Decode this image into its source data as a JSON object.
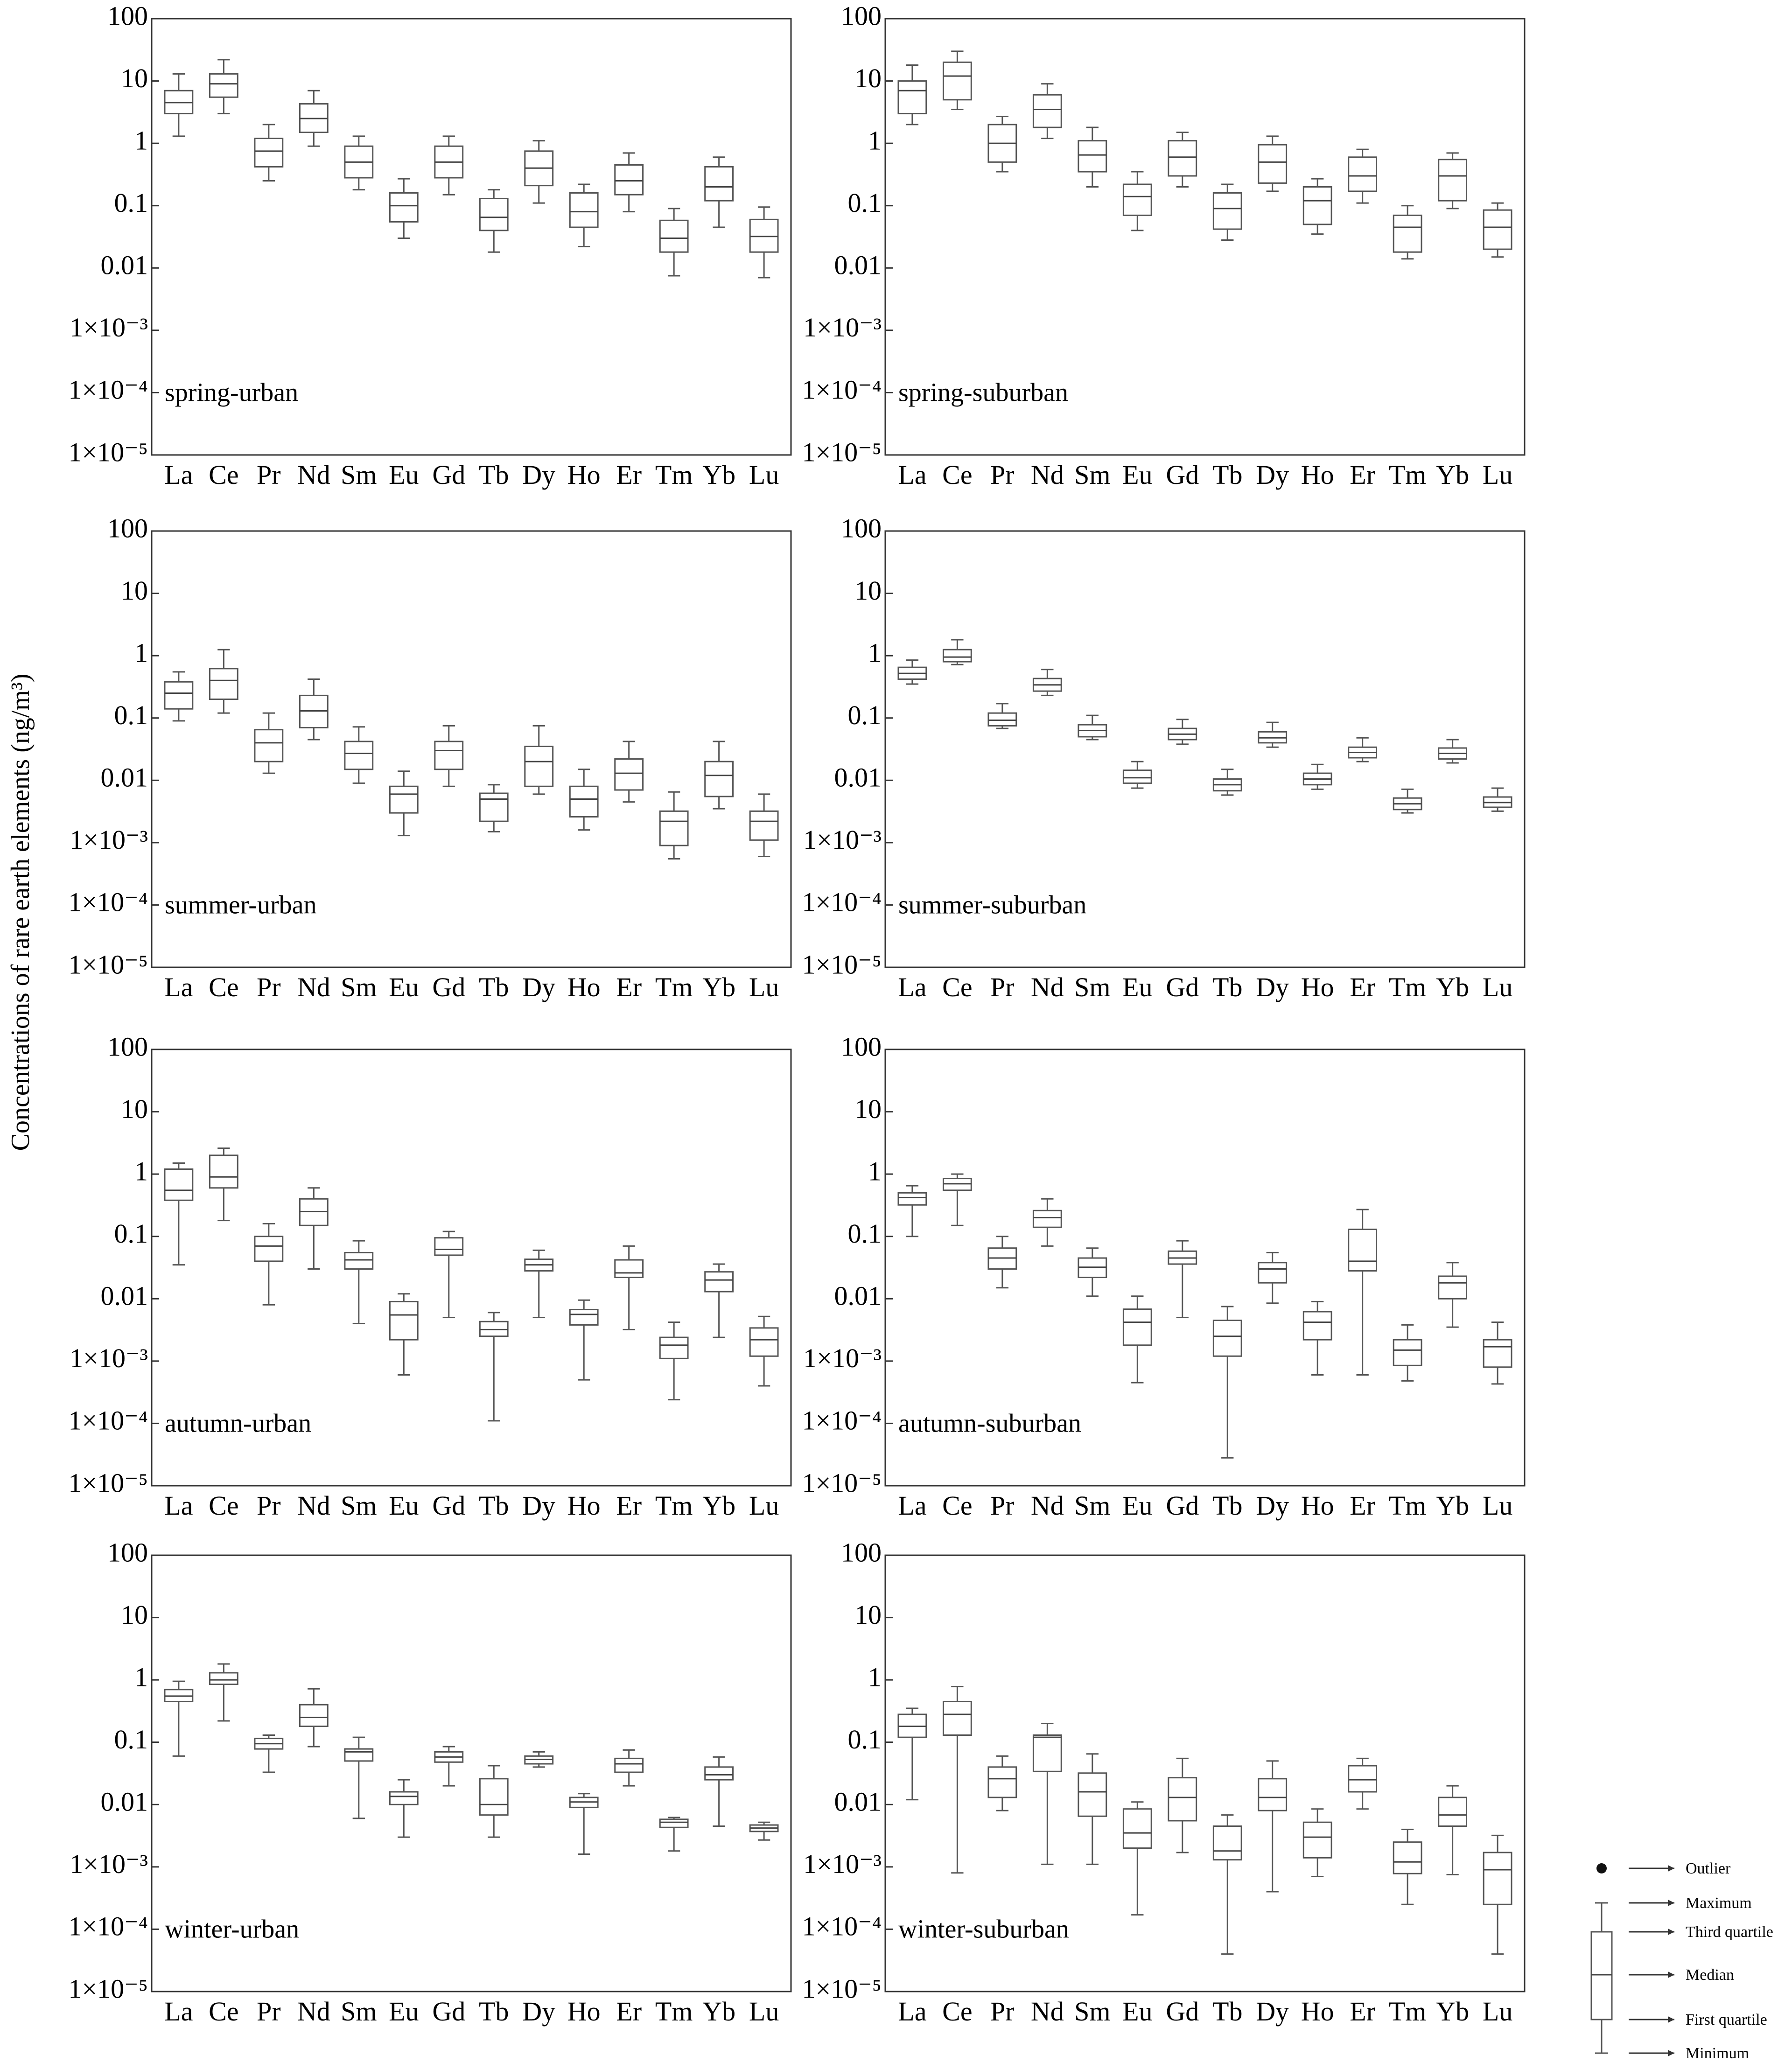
{
  "ylabel": "Concentrations of rare earth elements (ng/m³)",
  "chart_data": {
    "type": "box",
    "scale": "log",
    "ylim": [
      1e-05,
      100
    ],
    "yticks": [
      "100",
      "10",
      "1",
      "0.1",
      "0.01",
      "1×10⁻³",
      "1×10⁻⁴",
      "1×10⁻⁵"
    ],
    "categories": [
      "La",
      "Ce",
      "Pr",
      "Nd",
      "Sm",
      "Eu",
      "Gd",
      "Tb",
      "Dy",
      "Ho",
      "Er",
      "Tm",
      "Yb",
      "Lu"
    ],
    "box_stat_order": [
      "min",
      "q1",
      "median",
      "q3",
      "max"
    ],
    "panels": [
      {
        "label": "spring-urban",
        "boxes": [
          [
            1.3,
            3,
            4.5,
            7,
            13
          ],
          [
            3,
            5.5,
            9,
            13,
            22
          ],
          [
            0.25,
            0.42,
            0.75,
            1.2,
            2
          ],
          [
            0.9,
            1.5,
            2.5,
            4.3,
            7
          ],
          [
            0.18,
            0.28,
            0.5,
            0.9,
            1.3
          ],
          [
            0.03,
            0.055,
            0.1,
            0.16,
            0.27
          ],
          [
            0.15,
            0.28,
            0.5,
            0.9,
            1.3
          ],
          [
            0.018,
            0.04,
            0.065,
            0.13,
            0.18
          ],
          [
            0.11,
            0.21,
            0.4,
            0.75,
            1.1
          ],
          [
            0.022,
            0.045,
            0.08,
            0.16,
            0.22
          ],
          [
            0.08,
            0.15,
            0.25,
            0.45,
            0.7
          ],
          [
            0.0075,
            0.018,
            0.03,
            0.058,
            0.09
          ],
          [
            0.045,
            0.12,
            0.2,
            0.42,
            0.6
          ],
          [
            0.007,
            0.018,
            0.032,
            0.06,
            0.095
          ]
        ]
      },
      {
        "label": "spring-suburban",
        "boxes": [
          [
            2,
            3,
            7,
            10,
            18
          ],
          [
            3.5,
            5,
            12,
            20,
            30
          ],
          [
            0.35,
            0.5,
            1,
            2,
            2.7
          ],
          [
            1.2,
            1.8,
            3.5,
            6,
            9
          ],
          [
            0.2,
            0.35,
            0.65,
            1.1,
            1.8
          ],
          [
            0.04,
            0.07,
            0.14,
            0.22,
            0.35
          ],
          [
            0.2,
            0.3,
            0.6,
            1.1,
            1.5
          ],
          [
            0.028,
            0.042,
            0.09,
            0.16,
            0.22
          ],
          [
            0.17,
            0.23,
            0.5,
            0.95,
            1.3
          ],
          [
            0.035,
            0.05,
            0.12,
            0.2,
            0.27
          ],
          [
            0.11,
            0.17,
            0.3,
            0.6,
            0.8
          ],
          [
            0.014,
            0.018,
            0.045,
            0.07,
            0.1
          ],
          [
            0.09,
            0.12,
            0.3,
            0.55,
            0.7
          ],
          [
            0.015,
            0.02,
            0.045,
            0.085,
            0.11
          ]
        ]
      },
      {
        "label": "summer-urban",
        "boxes": [
          [
            0.09,
            0.14,
            0.25,
            0.38,
            0.55
          ],
          [
            0.12,
            0.2,
            0.4,
            0.62,
            1.25
          ],
          [
            0.013,
            0.02,
            0.04,
            0.065,
            0.12
          ],
          [
            0.045,
            0.07,
            0.13,
            0.23,
            0.42
          ],
          [
            0.009,
            0.015,
            0.027,
            0.042,
            0.072
          ],
          [
            0.0013,
            0.003,
            0.006,
            0.008,
            0.014
          ],
          [
            0.008,
            0.015,
            0.03,
            0.042,
            0.075
          ],
          [
            0.0015,
            0.0022,
            0.005,
            0.0062,
            0.0085
          ],
          [
            0.006,
            0.008,
            0.02,
            0.035,
            0.075
          ],
          [
            0.0016,
            0.0026,
            0.005,
            0.008,
            0.015
          ],
          [
            0.0045,
            0.007,
            0.013,
            0.022,
            0.042
          ],
          [
            0.00055,
            0.0009,
            0.0022,
            0.0032,
            0.0065
          ],
          [
            0.0035,
            0.0055,
            0.012,
            0.02,
            0.042
          ],
          [
            0.0006,
            0.0011,
            0.0022,
            0.0032,
            0.006
          ]
        ]
      },
      {
        "label": "summer-suburban",
        "boxes": [
          [
            0.35,
            0.42,
            0.52,
            0.65,
            0.85
          ],
          [
            0.72,
            0.8,
            0.95,
            1.25,
            1.8
          ],
          [
            0.068,
            0.075,
            0.092,
            0.12,
            0.17
          ],
          [
            0.23,
            0.27,
            0.34,
            0.43,
            0.6
          ],
          [
            0.045,
            0.05,
            0.063,
            0.078,
            0.11
          ],
          [
            0.0075,
            0.009,
            0.011,
            0.0145,
            0.02
          ],
          [
            0.038,
            0.045,
            0.055,
            0.068,
            0.095
          ],
          [
            0.0058,
            0.0068,
            0.0085,
            0.0105,
            0.015
          ],
          [
            0.034,
            0.04,
            0.048,
            0.06,
            0.085
          ],
          [
            0.0072,
            0.0085,
            0.0105,
            0.013,
            0.018
          ],
          [
            0.02,
            0.023,
            0.028,
            0.034,
            0.048
          ],
          [
            0.003,
            0.0034,
            0.0042,
            0.0052,
            0.0072
          ],
          [
            0.019,
            0.022,
            0.027,
            0.033,
            0.045
          ],
          [
            0.0032,
            0.0037,
            0.0044,
            0.0054,
            0.0075
          ]
        ]
      },
      {
        "label": "autumn-urban",
        "boxes": [
          [
            0.035,
            0.38,
            0.55,
            1.2,
            1.5
          ],
          [
            0.18,
            0.6,
            0.9,
            2,
            2.6
          ],
          [
            0.008,
            0.04,
            0.07,
            0.1,
            0.16
          ],
          [
            0.03,
            0.15,
            0.25,
            0.4,
            0.6
          ],
          [
            0.004,
            0.03,
            0.042,
            0.055,
            0.085
          ],
          [
            0.0006,
            0.0022,
            0.0055,
            0.009,
            0.012
          ],
          [
            0.005,
            0.05,
            0.062,
            0.095,
            0.12
          ],
          [
            0.00011,
            0.0025,
            0.0032,
            0.0043,
            0.006
          ],
          [
            0.005,
            0.028,
            0.035,
            0.043,
            0.06
          ],
          [
            0.0005,
            0.0038,
            0.0056,
            0.0067,
            0.0095
          ],
          [
            0.0032,
            0.022,
            0.026,
            0.042,
            0.07
          ],
          [
            0.00024,
            0.0011,
            0.0018,
            0.0024,
            0.0042
          ],
          [
            0.0024,
            0.013,
            0.02,
            0.027,
            0.036
          ],
          [
            0.0004,
            0.0012,
            0.0022,
            0.0034,
            0.0052
          ]
        ]
      },
      {
        "label": "autumn-suburban",
        "boxes": [
          [
            0.1,
            0.32,
            0.42,
            0.5,
            0.65
          ],
          [
            0.15,
            0.55,
            0.7,
            0.85,
            1
          ],
          [
            0.015,
            0.03,
            0.045,
            0.065,
            0.1
          ],
          [
            0.07,
            0.14,
            0.2,
            0.26,
            0.4
          ],
          [
            0.011,
            0.022,
            0.032,
            0.045,
            0.065
          ],
          [
            0.00045,
            0.0018,
            0.0042,
            0.0068,
            0.011
          ],
          [
            0.005,
            0.036,
            0.045,
            0.058,
            0.085
          ],
          [
            2.8e-05,
            0.0012,
            0.0025,
            0.0045,
            0.0075
          ],
          [
            0.0085,
            0.018,
            0.03,
            0.038,
            0.055
          ],
          [
            0.0006,
            0.0022,
            0.0042,
            0.0062,
            0.009
          ],
          [
            0.0006,
            0.028,
            0.04,
            0.13,
            0.27
          ],
          [
            0.00048,
            0.00085,
            0.0015,
            0.0022,
            0.0038
          ],
          [
            0.0035,
            0.01,
            0.018,
            0.023,
            0.038
          ],
          [
            0.00043,
            0.0008,
            0.0017,
            0.0022,
            0.0042
          ]
        ]
      },
      {
        "label": "winter-urban",
        "boxes": [
          [
            0.06,
            0.45,
            0.55,
            0.7,
            0.95
          ],
          [
            0.22,
            0.85,
            1,
            1.3,
            1.8
          ],
          [
            0.033,
            0.078,
            0.095,
            0.115,
            0.13
          ],
          [
            0.085,
            0.18,
            0.25,
            0.4,
            0.72
          ],
          [
            0.006,
            0.05,
            0.07,
            0.078,
            0.12
          ],
          [
            0.003,
            0.01,
            0.0135,
            0.016,
            0.025
          ],
          [
            0.02,
            0.048,
            0.058,
            0.07,
            0.085
          ],
          [
            0.003,
            0.0068,
            0.01,
            0.026,
            0.042
          ],
          [
            0.04,
            0.045,
            0.053,
            0.06,
            0.07
          ],
          [
            0.0016,
            0.009,
            0.011,
            0.013,
            0.015
          ],
          [
            0.02,
            0.033,
            0.045,
            0.055,
            0.075
          ],
          [
            0.0018,
            0.0043,
            0.0052,
            0.0058,
            0.0062
          ],
          [
            0.0045,
            0.025,
            0.03,
            0.04,
            0.058
          ],
          [
            0.0027,
            0.0037,
            0.0042,
            0.0047,
            0.0052
          ]
        ]
      },
      {
        "label": "winter-suburban",
        "boxes": [
          [
            0.012,
            0.12,
            0.18,
            0.28,
            0.35
          ],
          [
            0.0008,
            0.13,
            0.28,
            0.45,
            0.78
          ],
          [
            0.008,
            0.013,
            0.026,
            0.04,
            0.06
          ],
          [
            0.0011,
            0.034,
            0.12,
            0.13,
            0.2
          ],
          [
            0.0011,
            0.0065,
            0.016,
            0.032,
            0.065
          ],
          [
            0.00017,
            0.002,
            0.0035,
            0.0085,
            0.011
          ],
          [
            0.0017,
            0.0055,
            0.013,
            0.027,
            0.055
          ],
          [
            4e-05,
            0.0013,
            0.0018,
            0.0045,
            0.0068
          ],
          [
            0.0004,
            0.008,
            0.013,
            0.026,
            0.05
          ],
          [
            0.0007,
            0.0014,
            0.003,
            0.0052,
            0.0085
          ],
          [
            0.0085,
            0.016,
            0.025,
            0.042,
            0.055
          ],
          [
            0.00025,
            0.00078,
            0.0012,
            0.0025,
            0.004
          ],
          [
            0.00075,
            0.0045,
            0.0068,
            0.013,
            0.02
          ],
          [
            4e-05,
            0.00025,
            0.0009,
            0.0017,
            0.0032
          ]
        ]
      }
    ]
  },
  "legend": {
    "items": [
      "Outlier",
      "Maximum",
      "Third quartile",
      "Median",
      "First quartile",
      "Minimum"
    ]
  }
}
